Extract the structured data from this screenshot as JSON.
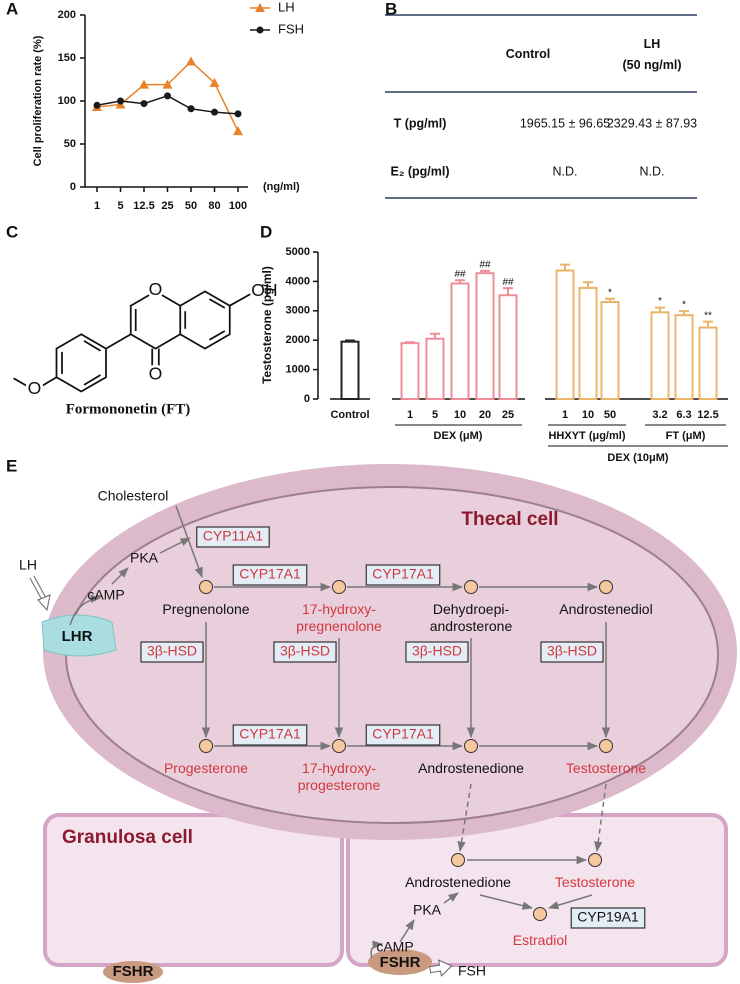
{
  "panel_labels": [
    "A",
    "B",
    "C",
    "D",
    "E"
  ],
  "chart_data": [
    {
      "type": "line",
      "categories": [
        "1",
        "5",
        "12.5",
        "25",
        "50",
        "80",
        "100"
      ],
      "x_unit": "(ng/ml)",
      "y_label": "Cell proliferation rate (%)",
      "ylim": [
        0,
        200
      ],
      "yticks": [
        0,
        50,
        100,
        150,
        200
      ],
      "legend": "top-right",
      "series": [
        {
          "name": "LH",
          "color": "#e8822a",
          "marker": "triangle",
          "values": [
            93,
            96,
            119,
            119,
            146,
            121,
            65
          ]
        },
        {
          "name": "FSH",
          "color": "#1a1a1a",
          "marker": "circle",
          "values": [
            95,
            100,
            97,
            106,
            91,
            87,
            85
          ]
        }
      ]
    },
    {
      "type": "bar",
      "y_label": "Testosterone (pg/ml)",
      "ylim": [
        0,
        5000
      ],
      "yticks": [
        0,
        1000,
        2000,
        3000,
        4000,
        5000
      ],
      "groups": [
        {
          "categories": [
            "Control"
          ],
          "values": [
            1950
          ],
          "errors": [
            40
          ],
          "color": "#222222"
        },
        {
          "label": "DEX (μM)",
          "categories": [
            "1",
            "5",
            "10",
            "20",
            "25"
          ],
          "values": [
            1900,
            2050,
            3930,
            4280,
            3530
          ],
          "errors": [
            30,
            170,
            110,
            80,
            240
          ],
          "color": "#ee8d98",
          "significance": [
            null,
            null,
            "##",
            "##",
            "##"
          ]
        },
        {
          "label": "DEX (10μM)",
          "subgroups": [
            {
              "label": "HHXYT (μg/ml)",
              "categories": [
                "1",
                "10",
                "50"
              ],
              "values": [
                4370,
                3780,
                3300
              ],
              "errors": [
                200,
                190,
                110
              ],
              "color": "#eab56b",
              "significance": [
                null,
                null,
                "*"
              ]
            },
            {
              "label": "FT (μM)",
              "categories": [
                "3.2",
                "6.3",
                "12.5"
              ],
              "values": [
                2950,
                2850,
                2430
              ],
              "errors": [
                160,
                140,
                200
              ],
              "color": "#eab56b",
              "significance": [
                "*",
                "*",
                "**"
              ]
            }
          ]
        }
      ]
    }
  ],
  "table": {
    "header": [
      [
        "Control"
      ],
      [
        "LH",
        "(50 ng/ml)"
      ]
    ],
    "rows": [
      [
        "T (pg/ml)",
        "1965.15 ± 96.65",
        "2329.43 ± 87.93"
      ],
      [
        "E₂ (pg/ml)",
        "N.D.",
        "N.D."
      ]
    ]
  },
  "structure": {
    "atoms": [
      "O",
      "OH",
      "O",
      "O"
    ],
    "caption": "Formononetin (FT)"
  },
  "diagram": {
    "cells": [
      "Thecal cell",
      "Granulosa cell"
    ],
    "precursor": "Cholesterol",
    "hormones": [
      "LH",
      "FSH"
    ],
    "receptors": [
      "LHR",
      "FSHR",
      "FSHR"
    ],
    "signals": [
      "cAMP",
      "PKA",
      "cAMP",
      "PKA"
    ],
    "metabolites": [
      [
        "Pregnenolone"
      ],
      [
        "17-hydroxy-",
        "pregnenolone"
      ],
      [
        "Dehydroepi-",
        "androsterone"
      ],
      [
        "Androstenediol"
      ],
      [
        "Progesterone"
      ],
      [
        "17-hydroxy-",
        "progesterone"
      ],
      [
        "Androstenedione"
      ],
      [
        "Testosterone"
      ],
      [
        "Androstenedione"
      ],
      [
        "Testosterone"
      ],
      [
        "Estradiol"
      ]
    ],
    "enzymes": [
      "CYP11A1",
      "CYP17A1",
      "CYP17A1",
      "CYP17A1",
      "CYP17A1",
      "3β-HSD",
      "3β-HSD",
      "3β-HSD",
      "3β-HSD",
      "CYP19A1"
    ]
  }
}
